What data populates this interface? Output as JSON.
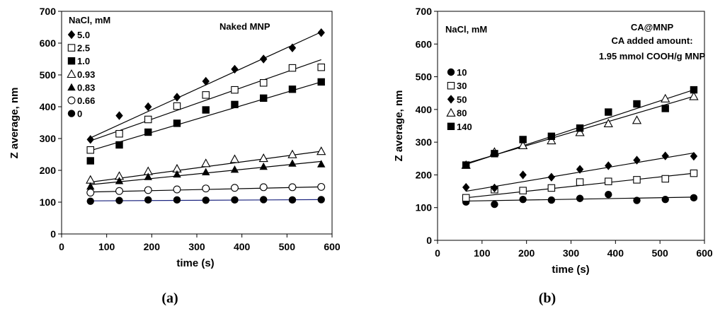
{
  "chart_data": [
    {
      "type": "scatter",
      "panel_label": "(a)",
      "title": "Naked MNP",
      "xlabel": "time (s)",
      "ylabel": "Z average, nm",
      "xlim": [
        0,
        600
      ],
      "ylim": [
        0,
        700
      ],
      "xticks": [
        0,
        100,
        200,
        300,
        400,
        500,
        600
      ],
      "yticks": [
        0,
        100,
        200,
        300,
        400,
        500,
        600,
        700
      ],
      "legend_title": "NaCl, mM",
      "legend_position": "top-left",
      "x": [
        64,
        128,
        192,
        256,
        320,
        384,
        448,
        512,
        576
      ],
      "series": [
        {
          "name": "5.0",
          "marker": "diamond",
          "values": [
            297,
            372,
            400,
            430,
            480,
            518,
            550,
            585,
            633
          ],
          "fit": [
            [
              64,
              302
            ],
            [
              576,
              635
            ]
          ]
        },
        {
          "name": "2.5",
          "marker": "square-open",
          "values": [
            264,
            315,
            360,
            402,
            437,
            453,
            475,
            522,
            524
          ],
          "fit": [
            [
              64,
              293
            ],
            [
              576,
              548
            ]
          ]
        },
        {
          "name": "1.0",
          "marker": "square",
          "values": [
            230,
            280,
            320,
            348,
            390,
            407,
            427,
            455,
            478
          ],
          "fit": [
            [
              64,
              262
            ],
            [
              576,
              478
            ]
          ]
        },
        {
          "name": "0.93",
          "marker": "triangle-open",
          "values": [
            170,
            182,
            197,
            205,
            222,
            235,
            238,
            250,
            260
          ],
          "fit": [
            [
              64,
              163
            ],
            [
              576,
              260
            ]
          ]
        },
        {
          "name": "0.83",
          "marker": "triangle",
          "values": [
            150,
            167,
            180,
            188,
            195,
            203,
            212,
            222,
            220
          ],
          "fit": [
            [
              64,
              155
            ],
            [
              576,
              228
            ]
          ]
        },
        {
          "name": "0.66",
          "marker": "circle-open",
          "values": [
            130,
            135,
            138,
            140,
            143,
            145,
            147,
            147,
            148
          ],
          "fit": [
            [
              64,
              132
            ],
            [
              576,
              148
            ]
          ]
        },
        {
          "name": "0",
          "marker": "circle",
          "values": [
            103,
            105,
            107,
            107,
            106,
            107,
            108,
            107,
            108
          ],
          "fit": [
            [
              64,
              104
            ],
            [
              576,
              108
            ]
          ]
        }
      ]
    },
    {
      "type": "scatter",
      "panel_label": "(b)",
      "title": "CA@MNP",
      "subtitle_lines": [
        "CA added amount:",
        "1.95 mmol COOH/g  MNP"
      ],
      "xlabel": "time (s)",
      "ylabel": "Z average, nm",
      "xlim": [
        0,
        600
      ],
      "ylim": [
        0,
        700
      ],
      "xticks": [
        0,
        100,
        200,
        300,
        400,
        500,
        600
      ],
      "yticks": [
        0,
        100,
        200,
        300,
        400,
        500,
        600,
        700
      ],
      "legend_title": "NaCl, mM",
      "legend_position": "top-left",
      "x": [
        64,
        128,
        192,
        256,
        320,
        384,
        448,
        512,
        576
      ],
      "series": [
        {
          "name": "10",
          "marker": "circle",
          "values": [
            117,
            110,
            125,
            123,
            128,
            140,
            122,
            125,
            130
          ],
          "fit": [
            [
              64,
              120
            ],
            [
              576,
              132
            ]
          ]
        },
        {
          "name": "30",
          "marker": "square-open",
          "values": [
            130,
            155,
            152,
            160,
            178,
            180,
            185,
            188,
            205
          ],
          "fit": [
            [
              64,
              130
            ],
            [
              576,
              205
            ]
          ]
        },
        {
          "name": "50",
          "marker": "diamond",
          "values": [
            162,
            160,
            200,
            193,
            217,
            228,
            245,
            258,
            257
          ],
          "fit": [
            [
              64,
              150
            ],
            [
              576,
              267
            ]
          ]
        },
        {
          "name": "80",
          "marker": "triangle-open",
          "values": [
            230,
            270,
            290,
            305,
            330,
            357,
            367,
            433,
            440
          ],
          "fit": [
            [
              64,
              235
            ],
            [
              576,
              440
            ]
          ]
        },
        {
          "name": "140",
          "marker": "square",
          "values": [
            230,
            265,
            308,
            318,
            343,
            392,
            417,
            403,
            460
          ],
          "fit": [
            [
              64,
              232
            ],
            [
              576,
              460
            ]
          ]
        }
      ]
    }
  ]
}
